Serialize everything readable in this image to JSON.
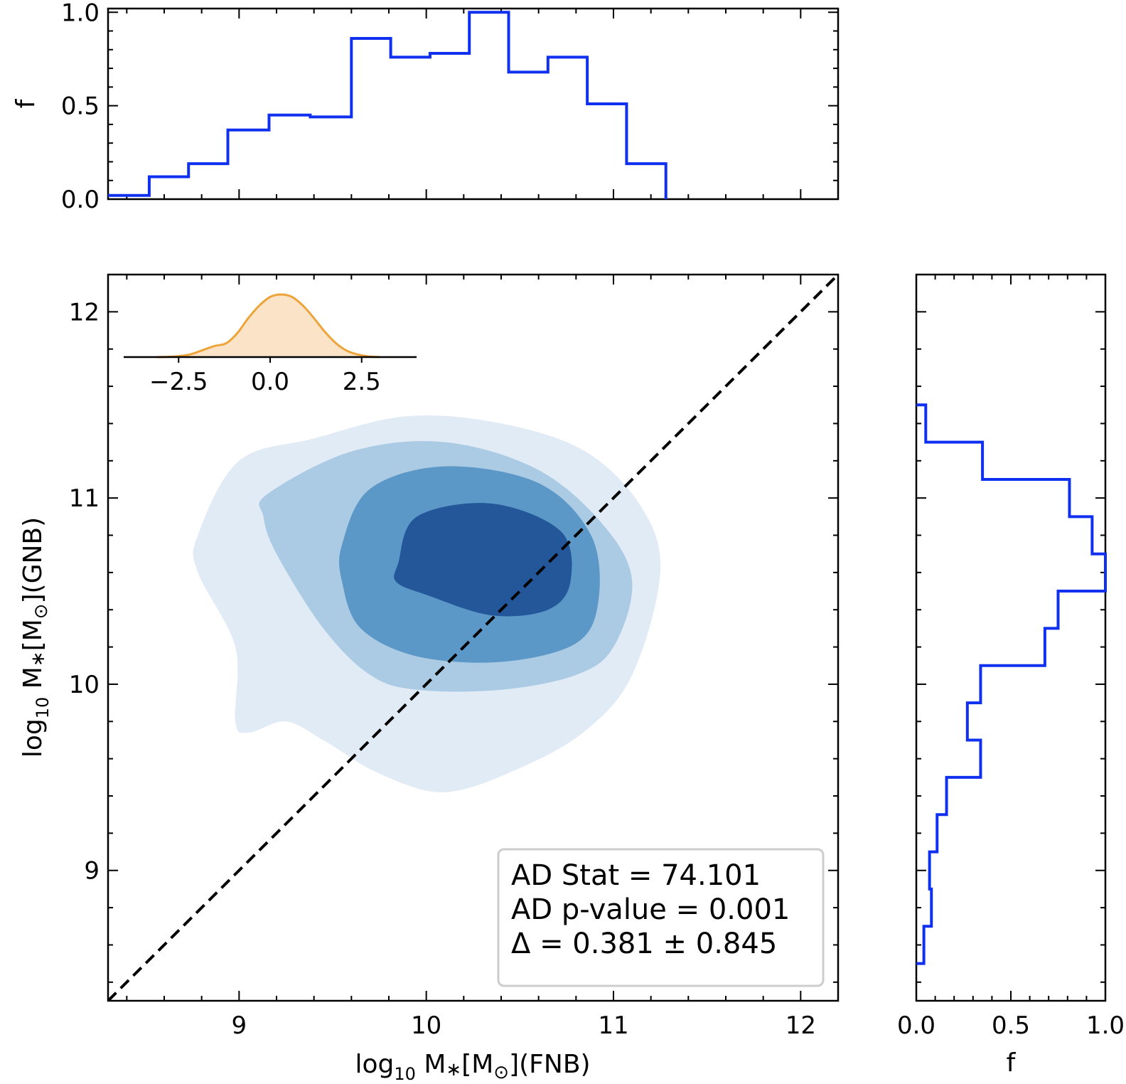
{
  "colors": {
    "hist": "#1030f0",
    "contour_levels": [
      "#e1ebf6",
      "#abcae3",
      "#5b97c7",
      "#24569a"
    ],
    "inset_fill": "#fbe3c7",
    "inset_line": "#eda43a",
    "diagonal": "#000000"
  },
  "chart_data": [
    {
      "id": "top-histogram",
      "type": "step-histogram",
      "orientation": "vertical",
      "xlim": [
        8.3,
        12.2
      ],
      "ylim": [
        0.0,
        1.02
      ],
      "ylabel": "f",
      "y_tick_labels": [
        "0.0",
        "0.5",
        "1.0"
      ],
      "y_tick_values": [
        0.0,
        0.5,
        1.0
      ],
      "bin_edges": [
        8.3,
        8.52,
        8.73,
        8.94,
        9.16,
        9.38,
        9.6,
        9.81,
        10.02,
        10.23,
        10.44,
        10.65,
        10.86,
        11.07,
        11.28
      ],
      "values": [
        0.02,
        0.12,
        0.19,
        0.37,
        0.45,
        0.44,
        0.86,
        0.76,
        0.78,
        1.0,
        0.68,
        0.76,
        0.51,
        0.19
      ]
    },
    {
      "id": "main-kde",
      "type": "contour",
      "xlim": [
        8.3,
        12.2
      ],
      "ylim": [
        8.3,
        12.2
      ],
      "xlabel": {
        "prefix": "log",
        "sub": "10",
        "middle": " M",
        "star": "∗",
        "bracket_open": "[M",
        "sun": "⊙",
        "bracket_close": "](FNB)"
      },
      "ylabel": {
        "prefix": "log",
        "sub": "10",
        "middle": " M",
        "star": "∗",
        "bracket_open": "[M",
        "sun": "⊙",
        "bracket_close": "](GNB)"
      },
      "x_tick_labels": [
        "9",
        "10",
        "11",
        "12"
      ],
      "x_tick_values": [
        9,
        10,
        11,
        12
      ],
      "y_tick_labels": [
        "9",
        "10",
        "11",
        "12"
      ],
      "y_tick_values": [
        9,
        10,
        11,
        12
      ],
      "diagonal_line": {
        "style": "dashed",
        "from": [
          8.3,
          8.3
        ],
        "to": [
          12.2,
          12.2
        ]
      },
      "contour_levels": [
        [
          [
            9.0,
            11.2
          ],
          [
            9.4,
            11.32
          ],
          [
            9.9,
            11.44
          ],
          [
            10.4,
            11.4
          ],
          [
            10.85,
            11.25
          ],
          [
            11.15,
            10.95
          ],
          [
            11.25,
            10.6
          ],
          [
            11.1,
            10.05
          ],
          [
            10.85,
            9.75
          ],
          [
            10.5,
            9.55
          ],
          [
            10.1,
            9.42
          ],
          [
            9.75,
            9.52
          ],
          [
            9.45,
            9.7
          ],
          [
            9.25,
            9.8
          ],
          [
            9.05,
            9.74
          ],
          [
            8.98,
            9.8
          ],
          [
            8.98,
            10.2
          ],
          [
            8.78,
            10.6
          ],
          [
            8.78,
            10.8
          ]
        ],
        [
          [
            9.15,
            11.02
          ],
          [
            9.6,
            11.25
          ],
          [
            10.1,
            11.3
          ],
          [
            10.6,
            11.15
          ],
          [
            10.95,
            10.85
          ],
          [
            11.1,
            10.55
          ],
          [
            11.0,
            10.2
          ],
          [
            10.8,
            10.05
          ],
          [
            10.4,
            9.97
          ],
          [
            9.95,
            9.97
          ],
          [
            9.7,
            10.05
          ],
          [
            9.45,
            10.3
          ],
          [
            9.2,
            10.7
          ],
          [
            9.13,
            10.9
          ]
        ],
        [
          [
            9.55,
            10.75
          ],
          [
            9.7,
            11.05
          ],
          [
            10.1,
            11.17
          ],
          [
            10.6,
            11.08
          ],
          [
            10.88,
            10.8
          ],
          [
            10.92,
            10.45
          ],
          [
            10.8,
            10.22
          ],
          [
            10.4,
            10.12
          ],
          [
            9.95,
            10.15
          ],
          [
            9.65,
            10.3
          ],
          [
            9.55,
            10.55
          ]
        ],
        [
          [
            9.85,
            10.65
          ],
          [
            9.95,
            10.9
          ],
          [
            10.35,
            10.97
          ],
          [
            10.72,
            10.82
          ],
          [
            10.77,
            10.55
          ],
          [
            10.65,
            10.4
          ],
          [
            10.35,
            10.37
          ],
          [
            10.0,
            10.48
          ],
          [
            9.84,
            10.55
          ]
        ]
      ]
    },
    {
      "id": "right-histogram",
      "type": "step-histogram",
      "orientation": "horizontal",
      "ylim": [
        8.3,
        12.2
      ],
      "xlim": [
        0.0,
        1.0
      ],
      "xlabel": "f",
      "x_tick_labels": [
        "0.0",
        "0.5",
        "1.0"
      ],
      "x_tick_values": [
        0.0,
        0.5,
        1.0
      ],
      "bin_edges": [
        8.5,
        8.7,
        8.9,
        9.1,
        9.3,
        9.5,
        9.7,
        9.9,
        10.1,
        10.3,
        10.5,
        10.7,
        10.9,
        11.1,
        11.3,
        11.5
      ],
      "values": [
        0.04,
        0.08,
        0.07,
        0.11,
        0.16,
        0.34,
        0.27,
        0.34,
        0.68,
        0.75,
        1.0,
        0.93,
        0.81,
        0.35,
        0.05
      ]
    },
    {
      "id": "inset-kde",
      "type": "area",
      "xlim": [
        -4.0,
        4.0
      ],
      "x_tick_labels": [
        "−2.5",
        "0.0",
        "2.5"
      ],
      "x_tick_values": [
        -2.5,
        0.0,
        2.5
      ],
      "x": [
        -3.1,
        -2.6,
        -2.2,
        -1.8,
        -1.5,
        -1.2,
        -0.9,
        -0.6,
        -0.3,
        0.0,
        0.3,
        0.6,
        0.9,
        1.2,
        1.5,
        1.8,
        2.1,
        2.4,
        2.7,
        3.0
      ],
      "y": [
        0.0,
        0.01,
        0.04,
        0.12,
        0.18,
        0.22,
        0.38,
        0.62,
        0.82,
        0.96,
        1.0,
        0.96,
        0.82,
        0.62,
        0.4,
        0.22,
        0.1,
        0.04,
        0.01,
        0.0
      ]
    }
  ],
  "legend": {
    "lines": [
      "AD Stat = 74.101",
      "AD p-value = 0.001",
      "Δ = 0.381 ± 0.845"
    ],
    "placement": "lower-right"
  }
}
